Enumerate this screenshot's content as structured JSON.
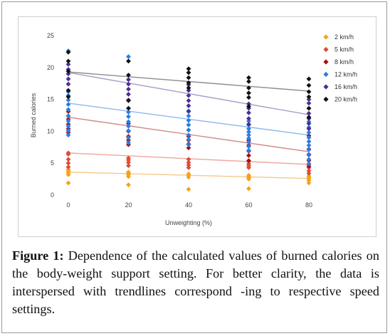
{
  "caption": {
    "label": "Figure 1:",
    "text": " Dependence of the calculated values of burned calories on the body-weight support setting. For better clarity, the data is interspersed with trendlines correspond -ing to respective speed settings."
  },
  "chart_data": {
    "type": "scatter",
    "xlabel": "Unweighting (%)",
    "ylabel": "Burned calories",
    "xlim": [
      0,
      80
    ],
    "ylim": [
      0,
      25
    ],
    "xticks": [
      0,
      20,
      40,
      60,
      80
    ],
    "yticks": [
      0,
      5,
      10,
      15,
      20,
      25
    ],
    "grid": false,
    "legend_position": "right",
    "series": [
      {
        "name": "2 km/h",
        "color": "#f4a21b",
        "trend_color": "#f6c987",
        "points": [
          [
            0,
            1.9
          ],
          [
            0,
            3.2
          ],
          [
            0,
            3.5
          ],
          [
            0,
            3.8
          ],
          [
            0,
            4.0
          ],
          [
            20,
            1.6
          ],
          [
            20,
            2.9
          ],
          [
            20,
            3.2
          ],
          [
            20,
            3.4
          ],
          [
            20,
            3.6
          ],
          [
            40,
            0.9
          ],
          [
            40,
            2.8
          ],
          [
            40,
            3.1
          ],
          [
            40,
            3.3
          ],
          [
            60,
            1.0
          ],
          [
            60,
            2.5
          ],
          [
            60,
            2.7
          ],
          [
            60,
            2.9
          ],
          [
            60,
            3.1
          ],
          [
            80,
            1.9
          ],
          [
            80,
            2.3
          ],
          [
            80,
            2.6
          ],
          [
            80,
            2.8
          ],
          [
            80,
            3.0
          ]
        ],
        "trend": [
          [
            0,
            3.6
          ],
          [
            80,
            2.6
          ]
        ]
      },
      {
        "name": "5 km/h",
        "color": "#e04a35",
        "trend_color": "#f0a79c",
        "points": [
          [
            0,
            4.4
          ],
          [
            0,
            5.0
          ],
          [
            0,
            5.6
          ],
          [
            0,
            6.4
          ],
          [
            0,
            6.6
          ],
          [
            20,
            4.6
          ],
          [
            20,
            5.1
          ],
          [
            20,
            5.5
          ],
          [
            20,
            5.8
          ],
          [
            40,
            4.3
          ],
          [
            40,
            4.7
          ],
          [
            40,
            5.1
          ],
          [
            40,
            5.6
          ],
          [
            60,
            4.3
          ],
          [
            60,
            4.6
          ],
          [
            60,
            4.9
          ],
          [
            60,
            5.3
          ],
          [
            80,
            3.4
          ],
          [
            80,
            3.8
          ],
          [
            80,
            4.3
          ],
          [
            80,
            4.8
          ]
        ],
        "trend": [
          [
            0,
            6.6
          ],
          [
            80,
            4.8
          ]
        ]
      },
      {
        "name": "8 km/h",
        "color": "#a01212",
        "trend_color": "#cf8a8a",
        "points": [
          [
            0,
            9.8
          ],
          [
            0,
            10.4
          ],
          [
            0,
            11.1
          ],
          [
            0,
            11.9
          ],
          [
            0,
            12.4
          ],
          [
            0,
            13.1
          ],
          [
            20,
            7.9
          ],
          [
            20,
            8.6
          ],
          [
            20,
            9.2
          ],
          [
            20,
            10.0
          ],
          [
            20,
            11.2
          ],
          [
            40,
            7.4
          ],
          [
            40,
            8.0
          ],
          [
            40,
            8.6
          ],
          [
            40,
            9.2
          ],
          [
            40,
            10.2
          ],
          [
            60,
            5.4
          ],
          [
            60,
            6.2
          ],
          [
            60,
            6.9
          ],
          [
            60,
            7.8
          ],
          [
            60,
            8.6
          ],
          [
            80,
            4.5
          ],
          [
            80,
            5.4
          ],
          [
            80,
            6.3
          ],
          [
            80,
            7.2
          ],
          [
            80,
            9.3
          ]
        ],
        "trend": [
          [
            0,
            12.2
          ],
          [
            80,
            6.8
          ]
        ]
      },
      {
        "name": "12 km/h",
        "color": "#2a7de1",
        "trend_color": "#8eb8ee",
        "points": [
          [
            0,
            9.4
          ],
          [
            0,
            10.1
          ],
          [
            0,
            10.8
          ],
          [
            0,
            11.6
          ],
          [
            0,
            12.4
          ],
          [
            0,
            13.4
          ],
          [
            0,
            14.2
          ],
          [
            0,
            14.9
          ],
          [
            0,
            15.6
          ],
          [
            0,
            16.2
          ],
          [
            0,
            22.6
          ],
          [
            20,
            8.2
          ],
          [
            20,
            9.0
          ],
          [
            20,
            10.1
          ],
          [
            20,
            10.8
          ],
          [
            20,
            11.5
          ],
          [
            20,
            12.3
          ],
          [
            20,
            13.0
          ],
          [
            20,
            13.6
          ],
          [
            20,
            21.7
          ],
          [
            40,
            7.9
          ],
          [
            40,
            8.7
          ],
          [
            40,
            9.4
          ],
          [
            40,
            10.2
          ],
          [
            40,
            11.0
          ],
          [
            40,
            11.7
          ],
          [
            40,
            12.4
          ],
          [
            40,
            13.2
          ],
          [
            60,
            7.0
          ],
          [
            60,
            7.6
          ],
          [
            60,
            8.3
          ],
          [
            60,
            8.9
          ],
          [
            60,
            9.4
          ],
          [
            60,
            9.9
          ],
          [
            60,
            10.4
          ],
          [
            60,
            11.0
          ],
          [
            60,
            11.6
          ],
          [
            80,
            4.9
          ],
          [
            80,
            5.6
          ],
          [
            80,
            6.4
          ],
          [
            80,
            7.1
          ],
          [
            80,
            7.8
          ],
          [
            80,
            8.4
          ],
          [
            80,
            9.0
          ],
          [
            80,
            9.8
          ],
          [
            80,
            10.6
          ],
          [
            80,
            11.5
          ]
        ],
        "trend": [
          [
            0,
            14.4
          ],
          [
            80,
            9.4
          ]
        ]
      },
      {
        "name": "16 km/h",
        "color": "#4a2f8f",
        "trend_color": "#a99ec9",
        "points": [
          [
            0,
            17.4
          ],
          [
            0,
            18.2
          ],
          [
            0,
            19.0
          ],
          [
            0,
            19.7
          ],
          [
            0,
            20.5
          ],
          [
            20,
            14.9
          ],
          [
            20,
            15.8
          ],
          [
            20,
            16.6
          ],
          [
            20,
            17.4
          ],
          [
            20,
            18.1
          ],
          [
            40,
            13.1
          ],
          [
            40,
            14.0
          ],
          [
            40,
            14.8
          ],
          [
            40,
            15.6
          ],
          [
            40,
            16.4
          ],
          [
            40,
            17.3
          ],
          [
            60,
            11.1
          ],
          [
            60,
            12.0
          ],
          [
            60,
            12.9
          ],
          [
            60,
            13.6
          ],
          [
            60,
            14.3
          ],
          [
            80,
            10.4
          ],
          [
            80,
            11.2
          ],
          [
            80,
            12.0
          ],
          [
            80,
            12.8
          ],
          [
            80,
            13.6
          ],
          [
            80,
            14.4
          ],
          [
            80,
            15.0
          ]
        ],
        "trend": [
          [
            0,
            19.2
          ],
          [
            80,
            12.6
          ]
        ]
      },
      {
        "name": "20 km/h",
        "color": "#111111",
        "trend_color": "#8c8c8c",
        "points": [
          [
            0,
            15.4
          ],
          [
            0,
            16.4
          ],
          [
            0,
            19.4
          ],
          [
            0,
            21.0
          ],
          [
            0,
            22.4
          ],
          [
            20,
            13.6
          ],
          [
            20,
            14.8
          ],
          [
            20,
            18.8
          ],
          [
            20,
            21.0
          ],
          [
            40,
            16.8
          ],
          [
            40,
            17.6
          ],
          [
            40,
            18.4
          ],
          [
            40,
            19.2
          ],
          [
            40,
            19.8
          ],
          [
            60,
            13.9
          ],
          [
            60,
            15.3
          ],
          [
            60,
            16.0
          ],
          [
            60,
            16.8
          ],
          [
            60,
            17.8
          ],
          [
            60,
            18.4
          ],
          [
            80,
            12.2
          ],
          [
            80,
            13.6
          ],
          [
            80,
            15.4
          ],
          [
            80,
            16.2
          ],
          [
            80,
            17.2
          ],
          [
            80,
            18.2
          ]
        ],
        "trend": [
          [
            0,
            19.3
          ],
          [
            80,
            16.3
          ]
        ]
      }
    ]
  }
}
